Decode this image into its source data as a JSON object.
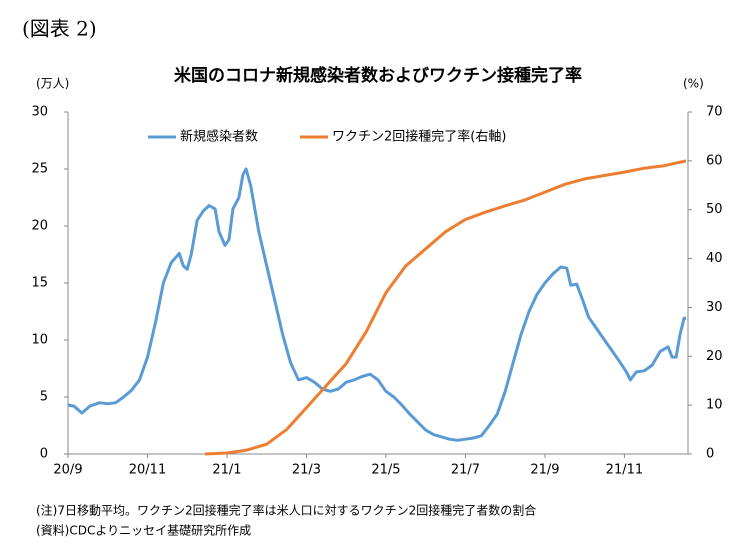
{
  "chart_data": {
    "type": "line",
    "label": "(図表 2)",
    "title": "米国のコロナ新規感染者数およびワクチン接種完了率",
    "ylabel": "(万人)",
    "y2label": "(%)",
    "notes": [
      "(注)7日移動平均。ワクチン2回接種完了率は米人口に対するワクチン2回接種完了者数の割合",
      "(資料)CDCよりニッセイ基礎研究所作成"
    ],
    "xlim": [
      0,
      15.6
    ],
    "xticks": [
      {
        "value": 0,
        "label": "20/9"
      },
      {
        "value": 2,
        "label": "20/11"
      },
      {
        "value": 4,
        "label": "21/1"
      },
      {
        "value": 6,
        "label": "21/3"
      },
      {
        "value": 8,
        "label": "21/5"
      },
      {
        "value": 10,
        "label": "21/7"
      },
      {
        "value": 12,
        "label": "21/9"
      },
      {
        "value": 14,
        "label": "21/11"
      }
    ],
    "ylim": [
      0,
      30
    ],
    "yticks": [
      0,
      5,
      10,
      15,
      20,
      25,
      30
    ],
    "y2lim": [
      0,
      70
    ],
    "y2ticks": [
      0,
      10,
      20,
      30,
      40,
      50,
      60,
      70
    ],
    "grid": false,
    "series": [
      {
        "name": "新規感染者数",
        "color": "#5b9bd5",
        "x": [
          0,
          0.15,
          0.35,
          0.55,
          0.8,
          1.0,
          1.2,
          1.4,
          1.6,
          1.8,
          2.0,
          2.2,
          2.4,
          2.6,
          2.8,
          2.9,
          3.0,
          3.1,
          3.25,
          3.4,
          3.55,
          3.7,
          3.8,
          3.95,
          4.05,
          4.15,
          4.3,
          4.4,
          4.48,
          4.6,
          4.8,
          5.0,
          5.2,
          5.4,
          5.6,
          5.8,
          6.0,
          6.2,
          6.4,
          6.6,
          6.8,
          7.0,
          7.2,
          7.4,
          7.6,
          7.8,
          8.0,
          8.2,
          8.4,
          8.6,
          8.8,
          9.0,
          9.2,
          9.4,
          9.6,
          9.8,
          10.0,
          10.2,
          10.4,
          10.6,
          10.8,
          11.0,
          11.2,
          11.4,
          11.6,
          11.8,
          12.0,
          12.2,
          12.4,
          12.55,
          12.65,
          12.8,
          12.95,
          13.1,
          13.3,
          13.5,
          13.7,
          13.9,
          14.05,
          14.15,
          14.3,
          14.5,
          14.7,
          14.9,
          15.1,
          15.2,
          15.3,
          15.4,
          15.5,
          15.55
        ],
        "values": [
          4.3,
          4.2,
          3.6,
          4.2,
          4.5,
          4.4,
          4.5,
          5.0,
          5.6,
          6.5,
          8.5,
          11.5,
          15.0,
          16.8,
          17.6,
          16.5,
          16.2,
          17.5,
          20.5,
          21.3,
          21.8,
          21.5,
          19.5,
          18.3,
          18.8,
          21.5,
          22.5,
          24.5,
          25.0,
          23.5,
          19.5,
          16.5,
          13.5,
          10.5,
          8.0,
          6.5,
          6.7,
          6.3,
          5.7,
          5.5,
          5.7,
          6.3,
          6.5,
          6.8,
          7.0,
          6.5,
          5.5,
          5.0,
          4.3,
          3.5,
          2.8,
          2.1,
          1.7,
          1.5,
          1.3,
          1.2,
          1.3,
          1.4,
          1.6,
          2.5,
          3.5,
          5.5,
          8.0,
          10.5,
          12.5,
          14.0,
          15.0,
          15.8,
          16.4,
          16.3,
          14.8,
          14.9,
          13.5,
          12.0,
          11.0,
          10.0,
          9.0,
          8.0,
          7.2,
          6.5,
          7.2,
          7.3,
          7.8,
          9.0,
          9.4,
          8.5,
          8.5,
          10.5,
          11.9,
          11.9
        ]
      },
      {
        "name": "ワクチン2回接種完了率(右軸)",
        "color": "#ed7d31",
        "axis": "y2",
        "x": [
          3.45,
          4.0,
          4.5,
          5.0,
          5.5,
          6.0,
          6.5,
          7.0,
          7.5,
          8.0,
          8.5,
          9.0,
          9.5,
          10.0,
          10.5,
          11.0,
          11.5,
          12.0,
          12.5,
          13.0,
          13.5,
          14.0,
          14.5,
          15.0,
          15.55
        ],
        "values": [
          0,
          0.2,
          0.8,
          2,
          5,
          9.5,
          14,
          18.5,
          25,
          33,
          38.5,
          42,
          45.5,
          48,
          49.5,
          50.8,
          52,
          53.6,
          55.2,
          56.3,
          57,
          57.7,
          58.5,
          59,
          60
        ]
      }
    ]
  }
}
